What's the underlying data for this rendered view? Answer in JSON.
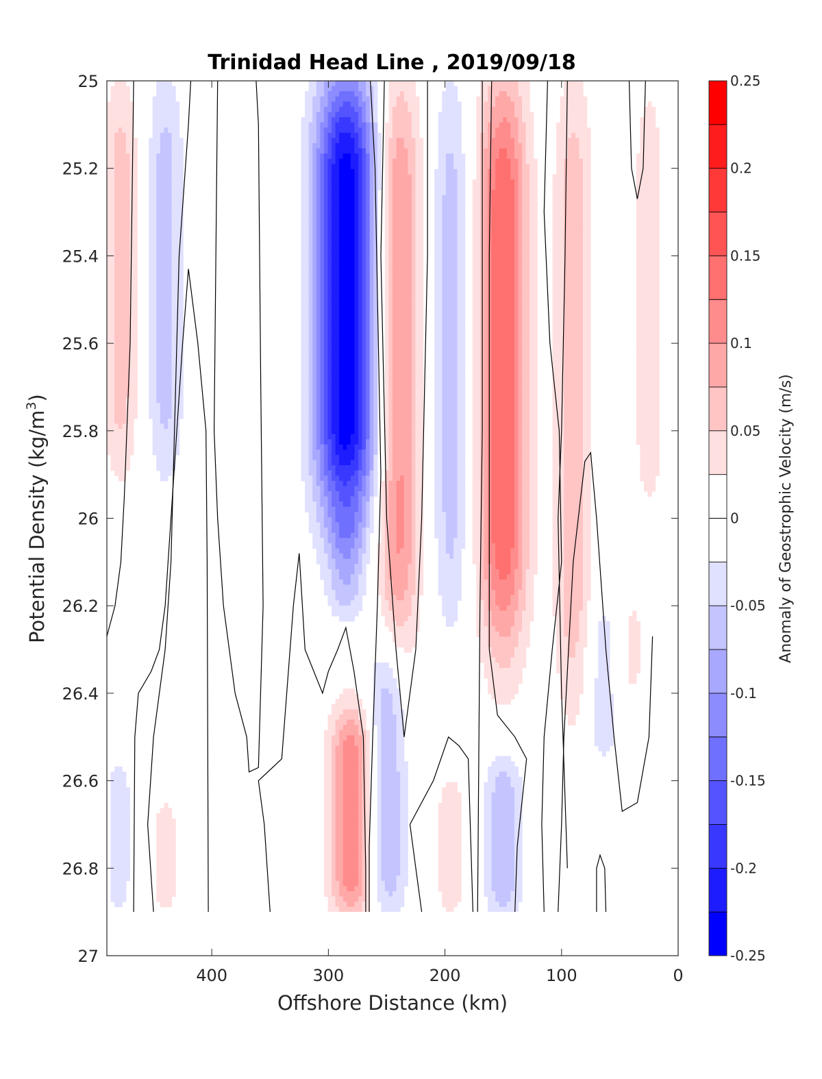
{
  "chart_data": {
    "type": "heatmap",
    "title": "Trinidad Head Line , 2019/09/18",
    "xlabel": "Offshore Distance (km)",
    "ylabel_main": "Potential Density (kg/m",
    "ylabel_sup": "3",
    "ylabel_close": ")",
    "colorbar_label": "Anomaly of Geostrophic Velocity (m/s)",
    "xlim": [
      490,
      0
    ],
    "ylim": [
      25,
      27
    ],
    "y_reversed": true,
    "x_ticks": [
      {
        "value": 400,
        "label": "400"
      },
      {
        "value": 300,
        "label": "300"
      },
      {
        "value": 200,
        "label": "200"
      },
      {
        "value": 100,
        "label": "100"
      },
      {
        "value": 0,
        "label": "0"
      }
    ],
    "y_ticks": [
      {
        "value": 25,
        "label": "25"
      },
      {
        "value": 25.2,
        "label": "25.2"
      },
      {
        "value": 25.4,
        "label": "25.4"
      },
      {
        "value": 25.6,
        "label": "25.6"
      },
      {
        "value": 25.8,
        "label": "25.8"
      },
      {
        "value": 26,
        "label": "26"
      },
      {
        "value": 26.2,
        "label": "26.2"
      },
      {
        "value": 26.4,
        "label": "26.4"
      },
      {
        "value": 26.6,
        "label": "26.6"
      },
      {
        "value": 26.8,
        "label": "26.8"
      },
      {
        "value": 27,
        "label": "27"
      }
    ],
    "colorbar": {
      "range": [
        -0.25,
        0.25
      ],
      "step": 0.025,
      "ticks": [
        {
          "value": 0.25,
          "label": "0.25"
        },
        {
          "value": 0.2,
          "label": "0.2"
        },
        {
          "value": 0.15,
          "label": "0.15"
        },
        {
          "value": 0.1,
          "label": "0.1"
        },
        {
          "value": 0.05,
          "label": "0.05"
        },
        {
          "value": 0,
          "label": "0"
        },
        {
          "value": -0.05,
          "label": "-0.05"
        },
        {
          "value": -0.1,
          "label": "-0.1"
        },
        {
          "value": -0.15,
          "label": "-0.15"
        },
        {
          "value": -0.2,
          "label": "-0.2"
        },
        {
          "value": -0.25,
          "label": "-0.25"
        }
      ]
    },
    "data_max_density": 26.9,
    "zero_contour_color": "#000000",
    "anomaly_cores": [
      {
        "x": 478,
        "y0": 25.0,
        "y1": 25.9,
        "peak": 0.06
      },
      {
        "x": 440,
        "y0": 25.0,
        "y1": 25.9,
        "peak": -0.06
      },
      {
        "x": 440,
        "y0": 26.65,
        "y1": 26.9,
        "peak": 0.035
      },
      {
        "x": 480,
        "y0": 26.55,
        "y1": 26.9,
        "peak": -0.035
      },
      {
        "x": 285,
        "y0": 25.0,
        "y1": 26.0,
        "peak": -0.24
      },
      {
        "x": 285,
        "y0": 26.0,
        "y1": 26.2,
        "peak": -0.05
      },
      {
        "x": 280,
        "y0": 26.45,
        "y1": 26.9,
        "peak": 0.12
      },
      {
        "x": 240,
        "y0": 25.0,
        "y1": 26.3,
        "peak": 0.11
      },
      {
        "x": 250,
        "y0": 26.3,
        "y1": 26.9,
        "peak": -0.08
      },
      {
        "x": 195,
        "y0": 25.0,
        "y1": 26.25,
        "peak": -0.06
      },
      {
        "x": 150,
        "y0": 25.0,
        "y1": 26.3,
        "peak": 0.15
      },
      {
        "x": 150,
        "y0": 26.55,
        "y1": 26.9,
        "peak": -0.07
      },
      {
        "x": 195,
        "y0": 26.6,
        "y1": 26.9,
        "peak": 0.04
      },
      {
        "x": 90,
        "y0": 25.0,
        "y1": 26.45,
        "peak": 0.07
      },
      {
        "x": 65,
        "y0": 26.2,
        "y1": 26.55,
        "peak": -0.04
      },
      {
        "x": 25,
        "y0": 25.0,
        "y1": 26.0,
        "peak": 0.04
      },
      {
        "x": 40,
        "y0": 26.2,
        "y1": 26.4,
        "peak": 0.03
      }
    ],
    "zero_contours": [
      [
        [
          490,
          26.27
        ],
        [
          483,
          26.2
        ],
        [
          478,
          26.1
        ],
        [
          475,
          25.95
        ],
        [
          470,
          25.6
        ],
        [
          467,
          25.0
        ]
      ],
      [
        [
          467,
          26.9
        ],
        [
          466,
          26.5
        ],
        [
          463,
          26.4
        ],
        [
          452,
          26.35
        ],
        [
          445,
          26.3
        ],
        [
          440,
          26.2
        ],
        [
          435,
          26.0
        ],
        [
          430,
          25.8
        ],
        [
          425,
          25.6
        ],
        [
          420,
          25.43
        ],
        [
          412,
          25.6
        ],
        [
          405,
          25.8
        ],
        [
          404,
          26.1
        ],
        [
          403,
          26.9
        ]
      ],
      [
        [
          450,
          26.9
        ],
        [
          455,
          26.7
        ],
        [
          450,
          26.5
        ],
        [
          440,
          26.3
        ],
        [
          435,
          26.1
        ],
        [
          432,
          25.8
        ],
        [
          430,
          25.6
        ],
        [
          428,
          25.4
        ],
        [
          420,
          25.1
        ],
        [
          418,
          25.0
        ]
      ],
      [
        [
          395,
          25.0
        ],
        [
          398,
          25.8
        ],
        [
          395,
          26.0
        ],
        [
          390,
          26.2
        ],
        [
          380,
          26.4
        ],
        [
          370,
          26.5
        ],
        [
          368,
          26.58
        ],
        [
          360,
          26.57
        ],
        [
          356,
          26.2
        ],
        [
          358,
          25.7
        ],
        [
          360,
          25.1
        ],
        [
          362,
          25.0
        ]
      ],
      [
        [
          350,
          26.9
        ],
        [
          355,
          26.7
        ],
        [
          360,
          26.6
        ],
        [
          340,
          26.55
        ],
        [
          330,
          26.2
        ],
        [
          325,
          26.08
        ],
        [
          320,
          26.3
        ],
        [
          305,
          26.4
        ],
        [
          300,
          26.35
        ],
        [
          292,
          26.3
        ],
        [
          285,
          26.25
        ],
        [
          278,
          26.35
        ],
        [
          270,
          26.5
        ],
        [
          268,
          26.8
        ],
        [
          268,
          26.9
        ]
      ],
      [
        [
          265,
          26.9
        ],
        [
          265,
          26.75
        ],
        [
          262,
          26.5
        ],
        [
          258,
          26.2
        ],
        [
          255,
          25.9
        ],
        [
          260,
          25.2
        ],
        [
          264,
          25.0
        ]
      ],
      [
        [
          215,
          25.0
        ],
        [
          215,
          25.4
        ],
        [
          220,
          26.0
        ],
        [
          225,
          26.3
        ],
        [
          235,
          26.5
        ],
        [
          242,
          26.3
        ],
        [
          250,
          26.0
        ],
        [
          255,
          25.4
        ],
        [
          252,
          25.0
        ]
      ],
      [
        [
          220,
          26.9
        ],
        [
          225,
          26.8
        ],
        [
          230,
          26.7
        ],
        [
          210,
          26.6
        ],
        [
          197,
          26.5
        ],
        [
          188,
          26.52
        ],
        [
          180,
          26.55
        ],
        [
          176,
          26.9
        ]
      ],
      [
        [
          172,
          26.9
        ],
        [
          170,
          26.2
        ],
        [
          168,
          25.8
        ],
        [
          168,
          25.0
        ]
      ],
      [
        [
          140,
          26.9
        ],
        [
          138,
          26.75
        ],
        [
          130,
          26.55
        ],
        [
          140,
          26.5
        ],
        [
          155,
          26.45
        ],
        [
          162,
          26.3
        ],
        [
          162,
          25.4
        ],
        [
          160,
          25.0
        ]
      ],
      [
        [
          115,
          26.9
        ],
        [
          117,
          26.7
        ],
        [
          115,
          26.5
        ],
        [
          108,
          26.3
        ],
        [
          100,
          26.1
        ],
        [
          102,
          25.8
        ],
        [
          110,
          25.6
        ],
        [
          115,
          25.3
        ],
        [
          112,
          25.0
        ]
      ],
      [
        [
          103,
          26.9
        ],
        [
          100,
          26.7
        ],
        [
          98,
          26.5
        ],
        [
          90,
          26.1
        ],
        [
          80,
          25.87
        ],
        [
          75,
          25.85
        ],
        [
          70,
          26.0
        ],
        [
          62,
          26.3
        ],
        [
          55,
          26.5
        ],
        [
          48,
          26.67
        ],
        [
          35,
          26.65
        ],
        [
          25,
          26.5
        ],
        [
          22,
          26.27
        ]
      ],
      [
        [
          62,
          26.9
        ],
        [
          63,
          26.8
        ],
        [
          67,
          26.77
        ],
        [
          70,
          26.8
        ],
        [
          70,
          26.9
        ]
      ],
      [
        [
          28,
          25.0
        ],
        [
          30,
          25.2
        ],
        [
          35,
          25.27
        ],
        [
          40,
          25.2
        ],
        [
          42,
          25.0
        ]
      ],
      [
        [
          95,
          25.0
        ],
        [
          97,
          25.4
        ],
        [
          100,
          25.8
        ],
        [
          103,
          26.0
        ],
        [
          100,
          26.4
        ],
        [
          95,
          26.8
        ]
      ]
    ]
  }
}
